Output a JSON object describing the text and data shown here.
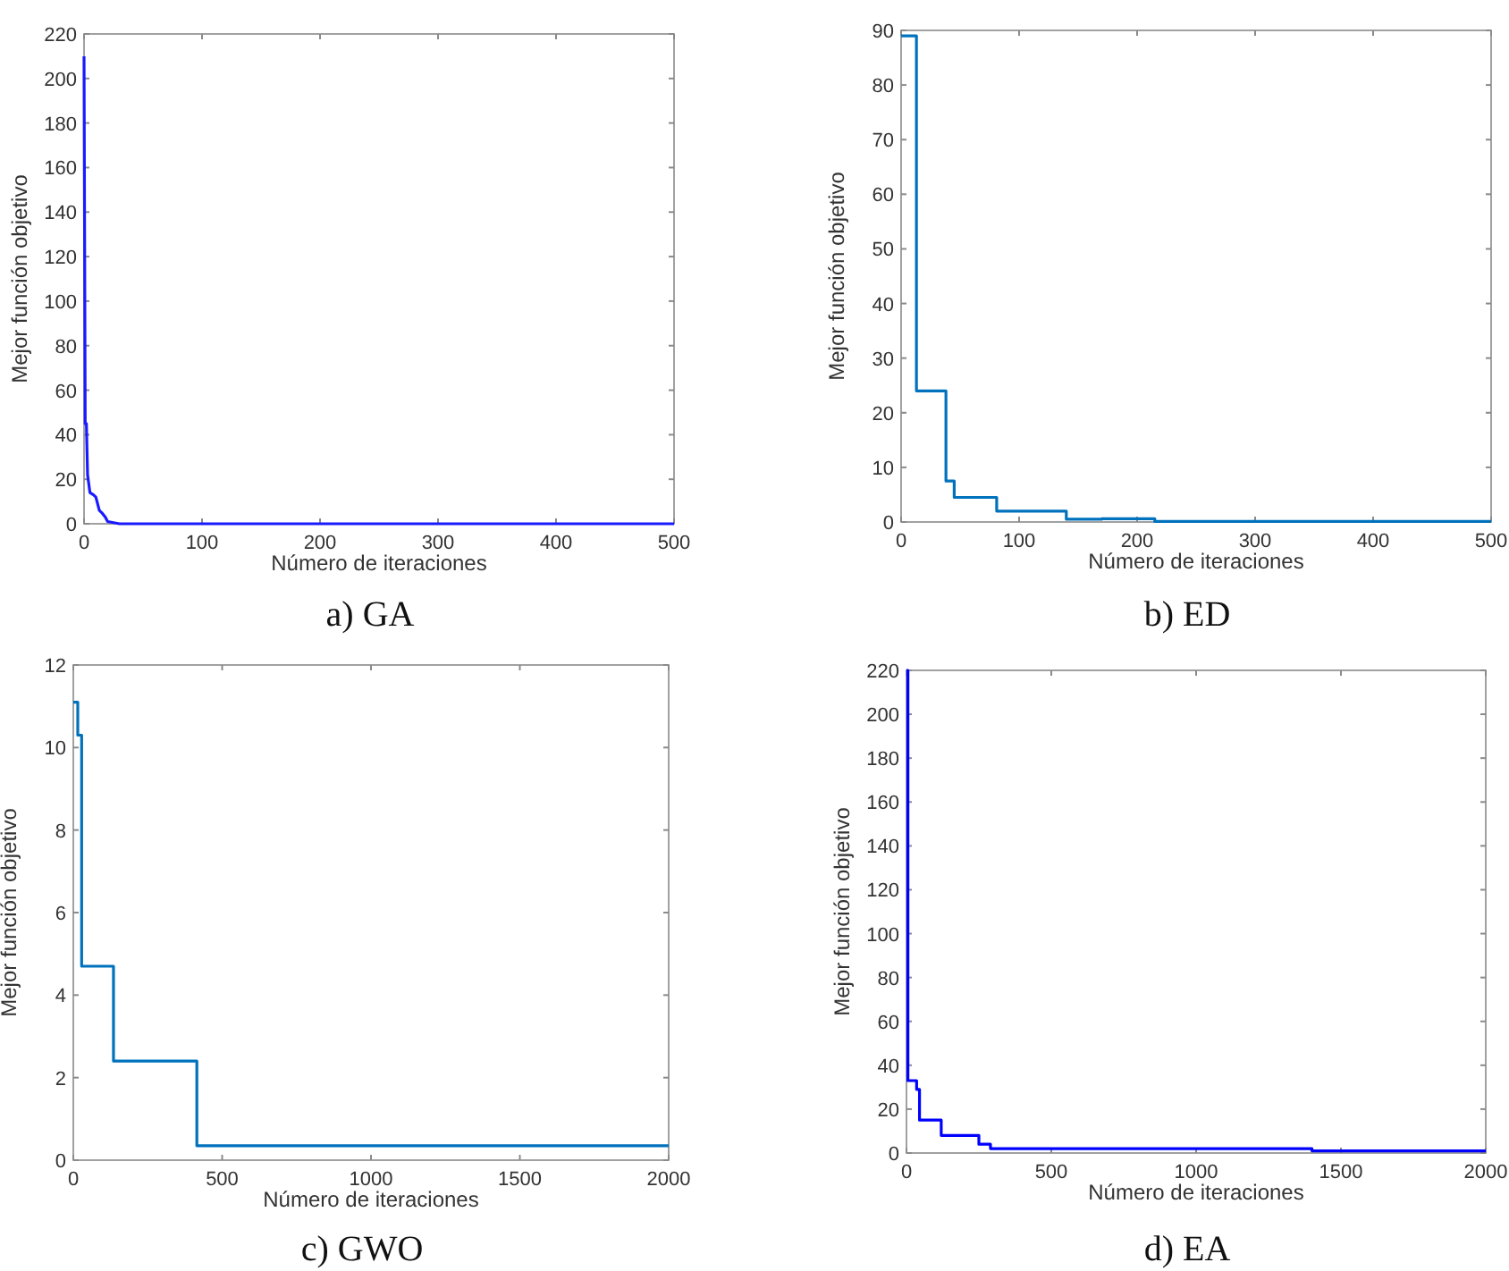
{
  "chart_data": [
    {
      "type": "line",
      "title": "a) GA",
      "xlabel": "Número de iteraciones",
      "ylabel": "Mejor función objetivo",
      "xlim": [
        0,
        500
      ],
      "ylim": [
        0,
        220
      ],
      "xticks": [
        0,
        100,
        200,
        300,
        400,
        500
      ],
      "yticks": [
        0,
        20,
        40,
        60,
        80,
        100,
        120,
        140,
        160,
        180,
        200,
        220
      ],
      "grid": false,
      "series": [
        {
          "color": "#1a1aff",
          "x": [
            0,
            1,
            2,
            3,
            5,
            8,
            10,
            13,
            15,
            18,
            20,
            30,
            500
          ],
          "values": [
            210,
            45,
            45,
            22,
            14,
            13,
            12,
            6,
            5,
            3,
            1,
            0,
            0
          ]
        }
      ]
    },
    {
      "type": "step",
      "title": "b) ED",
      "xlabel": "Número de iteraciones",
      "ylabel": "Mejor función objetivo",
      "xlim": [
        0,
        500
      ],
      "ylim": [
        0,
        90
      ],
      "xticks": [
        0,
        100,
        200,
        300,
        400,
        500
      ],
      "yticks": [
        0,
        10,
        20,
        30,
        40,
        50,
        60,
        70,
        80,
        90
      ],
      "grid": false,
      "series": [
        {
          "color": "#0072bd",
          "x": [
            0,
            13,
            38,
            45,
            81,
            140,
            170,
            215,
            500
          ],
          "values": [
            89,
            24,
            7.5,
            4.5,
            2,
            0.5,
            0.6,
            0.1,
            0.1
          ]
        }
      ]
    },
    {
      "type": "step",
      "title": "c) GWO",
      "xlabel": "Número de iteraciones",
      "ylabel": "Mejor función objetivo",
      "xlim": [
        0,
        2000
      ],
      "ylim": [
        0,
        12
      ],
      "xticks": [
        0,
        500,
        1000,
        1500,
        2000
      ],
      "yticks": [
        0,
        2,
        4,
        6,
        8,
        10,
        12
      ],
      "grid": false,
      "series": [
        {
          "color": "#0072bd",
          "x": [
            0,
            15,
            28,
            135,
            415,
            2000
          ],
          "values": [
            11.1,
            10.3,
            4.7,
            2.4,
            0.35,
            0.35
          ]
        }
      ]
    },
    {
      "type": "step",
      "title": "d) EA",
      "xlabel": "Número de iteraciones",
      "ylabel": "Mejor función objetivo",
      "xlim": [
        0,
        2000
      ],
      "ylim": [
        0,
        220
      ],
      "xticks": [
        0,
        500,
        1000,
        1500,
        2000
      ],
      "yticks": [
        0,
        20,
        40,
        60,
        80,
        100,
        120,
        140,
        160,
        180,
        200,
        220
      ],
      "grid": false,
      "series": [
        {
          "color": "#0000ff",
          "x": [
            0,
            5,
            35,
            45,
            120,
            250,
            290,
            1400,
            2000
          ],
          "values": [
            220,
            33,
            29,
            15,
            8,
            4,
            2,
            1,
            1
          ]
        }
      ]
    }
  ]
}
